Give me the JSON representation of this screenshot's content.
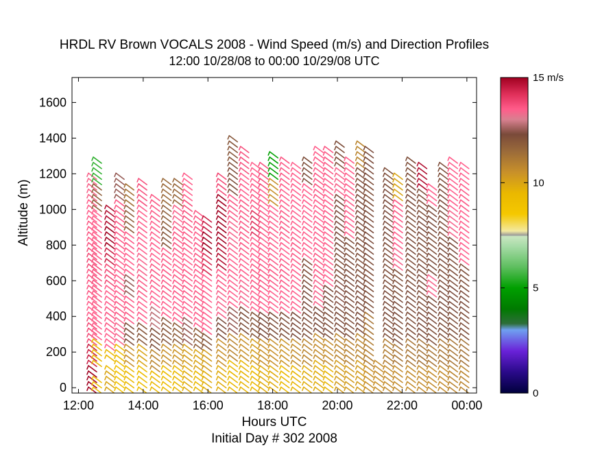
{
  "chart_data": {
    "type": "scatter",
    "title": "HRDL RV Brown VOCALS 2008 - Wind Speed (m/s) and Direction Profiles",
    "subtitle": "12:00 10/28/08 to 00:00 10/29/08  UTC",
    "xlabel": "Hours UTC",
    "xlabel2": "Initial Day # 302  2008",
    "ylabel": "Altitude (m)",
    "xlim": [
      11.8,
      24.3
    ],
    "ylim": [
      -30,
      1740
    ],
    "x_ticks": [
      {
        "value": 12,
        "label": "12:00"
      },
      {
        "value": 14,
        "label": "14:00"
      },
      {
        "value": 16,
        "label": "16:00"
      },
      {
        "value": 18,
        "label": "18:00"
      },
      {
        "value": 20,
        "label": "20:00"
      },
      {
        "value": 22,
        "label": "22:00"
      },
      {
        "value": 24,
        "label": "00:00"
      }
    ],
    "y_ticks": [
      {
        "value": 0,
        "label": "0"
      },
      {
        "value": 200,
        "label": "200"
      },
      {
        "value": 400,
        "label": "400"
      },
      {
        "value": 600,
        "label": "600"
      },
      {
        "value": 800,
        "label": "800"
      },
      {
        "value": 1000,
        "label": "1000"
      },
      {
        "value": 1200,
        "label": "1200"
      },
      {
        "value": 1400,
        "label": "1400"
      },
      {
        "value": 1600,
        "label": "1600"
      }
    ],
    "colorbar": {
      "min": 0,
      "max": 15,
      "unit": "m/s",
      "tick_labels": [
        {
          "value": 15,
          "label": "15 m/s"
        },
        {
          "value": 10,
          "label": "10"
        },
        {
          "value": 5,
          "label": "5"
        },
        {
          "value": 0,
          "label": "0"
        }
      ],
      "stops": [
        {
          "v": 0,
          "color": "#00003c"
        },
        {
          "v": 1,
          "color": "#2a0a8a"
        },
        {
          "v": 2,
          "color": "#6a22d8"
        },
        {
          "v": 3,
          "color": "#6fa0f0"
        },
        {
          "v": 3.3,
          "color": "#2e6e3a"
        },
        {
          "v": 4,
          "color": "#007a00"
        },
        {
          "v": 5,
          "color": "#00a000"
        },
        {
          "v": 6,
          "color": "#5fbf60"
        },
        {
          "v": 7,
          "color": "#a8dca8"
        },
        {
          "v": 7.45,
          "color": "#c9e6c0"
        },
        {
          "v": 7.5,
          "color": "#9a9a9a"
        },
        {
          "v": 7.7,
          "color": "#f3e9a0"
        },
        {
          "v": 8.5,
          "color": "#f5c800"
        },
        {
          "v": 9.5,
          "color": "#eab800"
        },
        {
          "v": 10.5,
          "color": "#c8902a"
        },
        {
          "v": 11.5,
          "color": "#9a6a3a"
        },
        {
          "v": 12.3,
          "color": "#7a4a3a"
        },
        {
          "v": 13,
          "color": "#d88090"
        },
        {
          "v": 13.5,
          "color": "#ff5c8a"
        },
        {
          "v": 14.2,
          "color": "#e0305a"
        },
        {
          "v": 15,
          "color": "#a00020"
        }
      ]
    },
    "profiles": [
      {
        "t": 12.35,
        "top": 1200,
        "speed": [
          15,
          14.5,
          13.8,
          13.5,
          13.6,
          13.8,
          13.6,
          13.5,
          13.4
        ]
      },
      {
        "t": 12.5,
        "top": 1300,
        "speed": [
          9,
          9.5,
          13.5,
          13.6,
          13.7,
          13.6,
          13.5,
          11.8,
          5.5
        ],
        "gap": [
          80,
          130
        ]
      },
      {
        "t": 12.9,
        "top": 1040,
        "speed": [
          10,
          9.5,
          13.5,
          13.6,
          13.5,
          13.8,
          14.5,
          15,
          14.8
        ],
        "gap": [
          130,
          170
        ]
      },
      {
        "t": 13.2,
        "top": 1200,
        "speed": [
          9,
          9.3,
          13.4,
          13.6,
          13.5,
          13.5,
          13.6,
          13.6,
          12.5
        ]
      },
      {
        "t": 13.5,
        "top": 1150,
        "speed": [
          9.5,
          10.5,
          12.2,
          13.6,
          12.5,
          13.5,
          13.6,
          11.8,
          11.3
        ]
      },
      {
        "t": 13.9,
        "top": 1170,
        "speed": [
          9.2,
          10,
          12,
          13.5,
          13.6,
          13.4,
          13.5,
          13.5,
          13.7
        ]
      },
      {
        "t": 14.3,
        "top": 1080,
        "speed": [
          9.5,
          10.8,
          12.2,
          12.8,
          13.5,
          13.6,
          13.5,
          13.5,
          13.6
        ]
      },
      {
        "t": 14.65,
        "top": 1180,
        "speed": [
          9.3,
          10.5,
          12,
          13.5,
          13.6,
          13.6,
          12,
          11.8,
          11.5
        ]
      },
      {
        "t": 15.0,
        "top": 1170,
        "speed": [
          9.5,
          10.4,
          11.8,
          13.5,
          13.6,
          13.5,
          13.6,
          13.4,
          11.6
        ]
      },
      {
        "t": 15.3,
        "top": 1200,
        "speed": [
          9.8,
          10.2,
          12.5,
          13.5,
          13.6,
          13.5,
          13.6,
          13.7,
          13.5
        ]
      },
      {
        "t": 15.65,
        "top": 1000,
        "speed": [
          9.5,
          10,
          11.8,
          13.5,
          13.6,
          13.5,
          13.6,
          13.5,
          13.6
        ]
      },
      {
        "t": 15.9,
        "top": 980,
        "speed": [
          9.8,
          10.2,
          12,
          13.5,
          13.5,
          13.5,
          14.3,
          15,
          14.5
        ]
      },
      {
        "t": 16.35,
        "top": 1220,
        "speed": [
          9.8,
          10.5,
          12.3,
          13.4,
          13.6,
          14.8,
          15,
          15,
          13.8
        ]
      },
      {
        "t": 16.7,
        "top": 1420,
        "speed": [
          9.5,
          10.8,
          12.5,
          13.5,
          13.5,
          13.4,
          13.6,
          12.2,
          12
        ]
      },
      {
        "t": 17.05,
        "top": 1360,
        "speed": [
          9.6,
          10.5,
          12.2,
          13.4,
          13.5,
          13.6,
          13.6,
          13.5,
          13.7
        ]
      },
      {
        "t": 17.4,
        "top": 1280,
        "speed": [
          9.5,
          10.2,
          12,
          13.5,
          13.6,
          13.5,
          14.2,
          13.6,
          13.5
        ]
      },
      {
        "t": 17.65,
        "top": 1280,
        "speed": [
          9.8,
          10.5,
          12.3,
          13.5,
          13.6,
          13.5,
          13.6,
          13.5,
          13.7
        ]
      },
      {
        "t": 17.95,
        "top": 1330,
        "speed": [
          9.8,
          10.5,
          12.2,
          13.5,
          13.6,
          13.5,
          13.5,
          10.5,
          5
        ]
      },
      {
        "t": 18.3,
        "top": 1300,
        "speed": [
          9.5,
          10.4,
          12.2,
          13.5,
          13.6,
          13.5,
          13.6,
          13.5,
          13.6
        ]
      },
      {
        "t": 18.65,
        "top": 1270,
        "speed": [
          9.6,
          10.6,
          12.3,
          13.5,
          13.5,
          13.6,
          13.5,
          13.5,
          13.5
        ]
      },
      {
        "t": 19.0,
        "top": 1300,
        "speed": [
          9.8,
          10.8,
          12.2,
          12.3,
          12.2,
          13.5,
          13.5,
          13.5,
          12.2
        ]
      },
      {
        "t": 19.35,
        "top": 1370,
        "speed": [
          9.8,
          10.6,
          12.3,
          13.4,
          13.6,
          13.5,
          13.5,
          13.6,
          13.5
        ]
      },
      {
        "t": 19.65,
        "top": 1350,
        "speed": [
          9.6,
          10.6,
          12.2,
          12.3,
          13.5,
          13.5,
          13.6,
          13.5,
          13.6
        ]
      },
      {
        "t": 20.0,
        "top": 1400,
        "speed": [
          10.2,
          10.8,
          12.3,
          12.4,
          12.2,
          12.3,
          12.3,
          13.4,
          12.2
        ]
      },
      {
        "t": 20.3,
        "top": 1300,
        "speed": [
          10.2,
          10.9,
          12.2,
          12.3,
          12.3,
          12.2,
          13.5,
          13.5,
          13.5
        ]
      },
      {
        "t": 20.65,
        "top": 1390,
        "speed": [
          10.2,
          10.8,
          12.3,
          12.3,
          12.2,
          12.2,
          12.3,
          12.2,
          10.8
        ]
      },
      {
        "t": 20.9,
        "top": 1350,
        "speed": [
          10.5,
          11,
          11.2,
          12.2,
          12.2,
          12.3,
          12.3,
          12.2,
          12.3
        ]
      },
      {
        "t": 21.2,
        "top": 170,
        "speed": [
          10.5,
          10.6
        ]
      },
      {
        "t": 21.5,
        "top": 1250,
        "speed": [
          10.6,
          11,
          12.2,
          12.3,
          12.2,
          12.2,
          12.3,
          12.3,
          12.2
        ]
      },
      {
        "t": 21.8,
        "top": 1200,
        "speed": [
          10.6,
          11.2,
          12.2,
          12.3,
          12.2,
          13.4,
          13.5,
          13.6,
          10
        ]
      },
      {
        "t": 22.2,
        "top": 1300,
        "speed": [
          10.6,
          11.2,
          12.2,
          12.3,
          12.2,
          12.3,
          12.2,
          12.3,
          12.2
        ]
      },
      {
        "t": 22.55,
        "top": 1270,
        "speed": [
          10.6,
          11.3,
          12.3,
          12.2,
          12.3,
          12.2,
          12.3,
          12.2,
          14.8
        ]
      },
      {
        "t": 22.85,
        "top": 1150,
        "speed": [
          10.6,
          11.2,
          12.2,
          12.3,
          13.4,
          12.3,
          12.2,
          12.3,
          13.5
        ]
      },
      {
        "t": 23.2,
        "top": 1260,
        "speed": [
          10.6,
          11.2,
          12.2,
          12.3,
          12.2,
          12.3,
          12.2,
          12.3,
          12.2
        ]
      },
      {
        "t": 23.5,
        "top": 1300,
        "speed": [
          10.8,
          11.2,
          12.2,
          12.3,
          12.2,
          12.3,
          13.4,
          13.5,
          13.5
        ]
      },
      {
        "t": 23.85,
        "top": 1280,
        "speed": [
          10.8,
          11.3,
          12.2,
          12.3,
          12.2,
          13.5,
          13.5,
          13.6,
          13.5
        ]
      }
    ]
  }
}
